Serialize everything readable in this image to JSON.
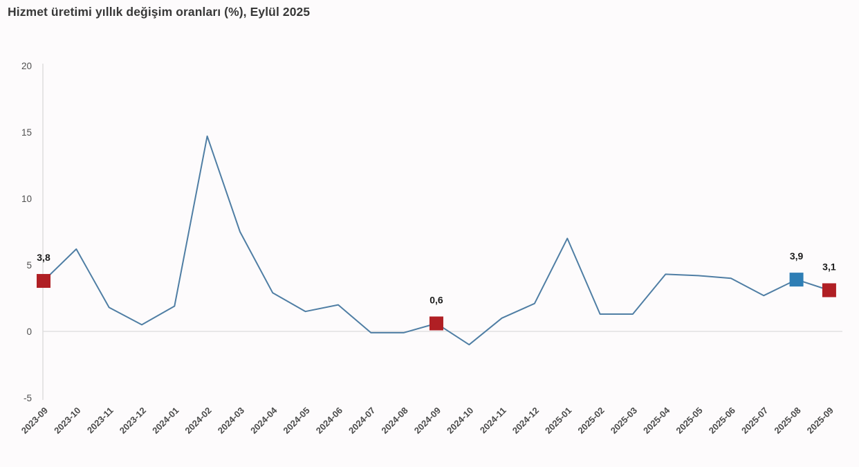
{
  "title": "Hizmet üretimi yıllık değişim oranları (%), Eylül 2025",
  "chart_data": {
    "type": "line",
    "title": "Hizmet üretimi yıllık değişim oranları (%), Eylül 2025",
    "x": [
      "2023-09",
      "2023-10",
      "2023-11",
      "2023-12",
      "2024-01",
      "2024-02",
      "2024-03",
      "2024-04",
      "2024-05",
      "2024-06",
      "2024-07",
      "2024-08",
      "2024-09",
      "2024-10",
      "2024-11",
      "2024-12",
      "2025-01",
      "2025-02",
      "2025-03",
      "2025-04",
      "2025-05",
      "2025-06",
      "2025-07",
      "2025-08",
      "2025-09"
    ],
    "values": [
      3.8,
      6.2,
      1.8,
      0.5,
      1.9,
      14.7,
      7.5,
      2.9,
      1.5,
      2.0,
      -0.1,
      -0.1,
      0.6,
      -1.0,
      1.0,
      2.1,
      7.0,
      1.3,
      1.3,
      4.3,
      4.2,
      4.0,
      2.7,
      3.9,
      3.1
    ],
    "ylim": [
      -5,
      20
    ],
    "yticks": [
      20,
      15,
      10,
      5,
      0,
      -5
    ],
    "grid": "horizontal gridline at 0 only, light vertical y-axis line on left",
    "legend": "none",
    "line_color": "#4F7EA4",
    "axis_line_color": "#D6D6D6",
    "zero_line_color": "#DBDBDB",
    "highlights": [
      {
        "index": 0,
        "label": "3,8",
        "color": "#B01F24"
      },
      {
        "index": 12,
        "label": "0,6",
        "color": "#B01F24"
      },
      {
        "index": 23,
        "label": "3,9",
        "color": "#2E7EB5"
      },
      {
        "index": 24,
        "label": "3,1",
        "color": "#B01F24"
      }
    ]
  }
}
